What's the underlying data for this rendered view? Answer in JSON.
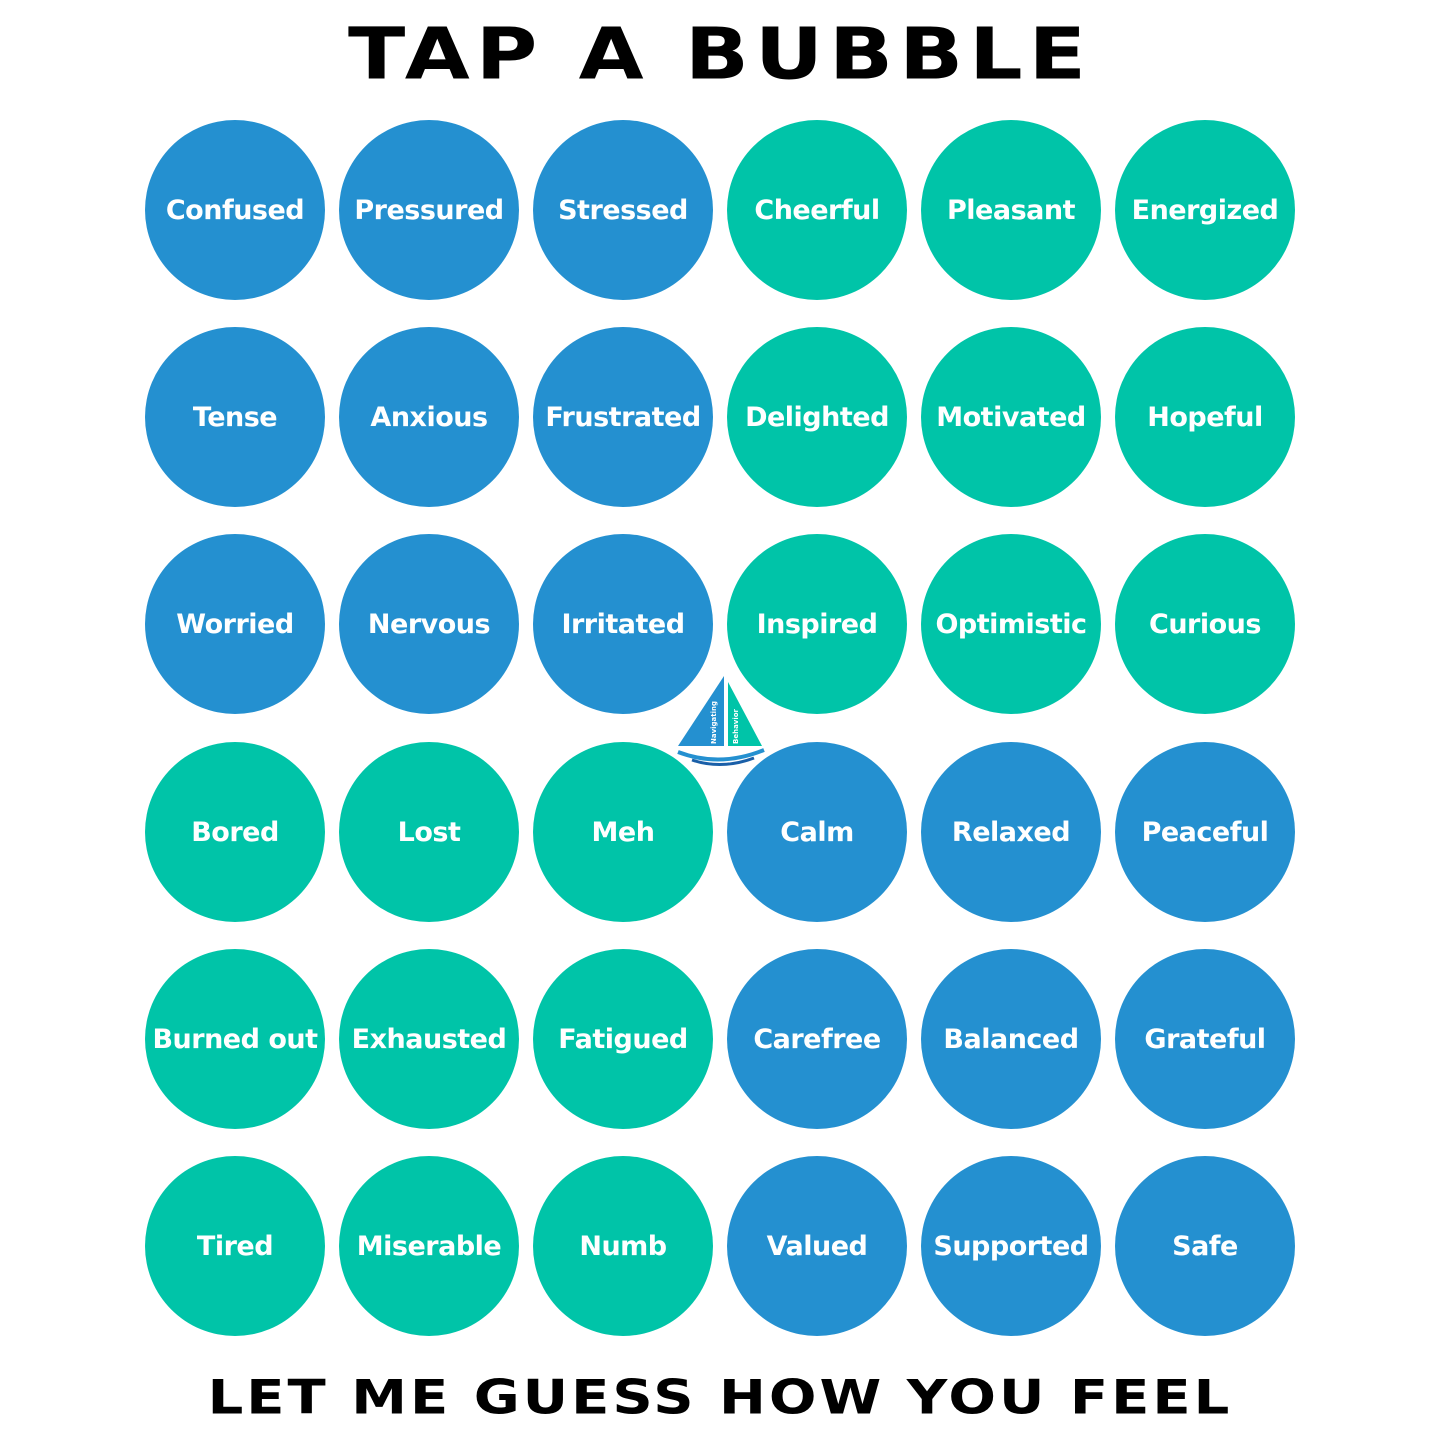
{
  "header": {
    "title": "TAP A BUBBLE"
  },
  "footer": {
    "subtitle": "LET ME GUESS HOW YOU FEEL"
  },
  "colors": {
    "blue": "#2490D0",
    "green": "#00C4A8",
    "text": "#000000"
  },
  "logo": {
    "text_line1": "Navigating",
    "text_line2": "Behavior",
    "icon": "sailboat-icon"
  },
  "bubbles": [
    [
      {
        "label": "Confused",
        "color": "blue"
      },
      {
        "label": "Pressured",
        "color": "blue"
      },
      {
        "label": "Stressed",
        "color": "blue"
      },
      {
        "label": "Cheerful",
        "color": "green"
      },
      {
        "label": "Pleasant",
        "color": "green"
      },
      {
        "label": "Energized",
        "color": "green"
      }
    ],
    [
      {
        "label": "Tense",
        "color": "blue"
      },
      {
        "label": "Anxious",
        "color": "blue"
      },
      {
        "label": "Frustrated",
        "color": "blue"
      },
      {
        "label": "Delighted",
        "color": "green"
      },
      {
        "label": "Motivated",
        "color": "green"
      },
      {
        "label": "Hopeful",
        "color": "green"
      }
    ],
    [
      {
        "label": "Worried",
        "color": "blue"
      },
      {
        "label": "Nervous",
        "color": "blue"
      },
      {
        "label": "Irritated",
        "color": "blue"
      },
      {
        "label": "Inspired",
        "color": "green"
      },
      {
        "label": "Optimistic",
        "color": "green"
      },
      {
        "label": "Curious",
        "color": "green"
      }
    ],
    [
      {
        "label": "Bored",
        "color": "green"
      },
      {
        "label": "Lost",
        "color": "green"
      },
      {
        "label": "Meh",
        "color": "green"
      },
      {
        "label": "Calm",
        "color": "blue"
      },
      {
        "label": "Relaxed",
        "color": "blue"
      },
      {
        "label": "Peaceful",
        "color": "blue"
      }
    ],
    [
      {
        "label": "Burned out",
        "color": "green"
      },
      {
        "label": "Exhausted",
        "color": "green"
      },
      {
        "label": "Fatigued",
        "color": "green"
      },
      {
        "label": "Carefree",
        "color": "blue"
      },
      {
        "label": "Balanced",
        "color": "blue"
      },
      {
        "label": "Grateful",
        "color": "blue"
      }
    ],
    [
      {
        "label": "Tired",
        "color": "green"
      },
      {
        "label": "Miserable",
        "color": "green"
      },
      {
        "label": "Numb",
        "color": "green"
      },
      {
        "label": "Valued",
        "color": "blue"
      },
      {
        "label": "Supported",
        "color": "blue"
      },
      {
        "label": "Safe",
        "color": "blue"
      }
    ]
  ]
}
